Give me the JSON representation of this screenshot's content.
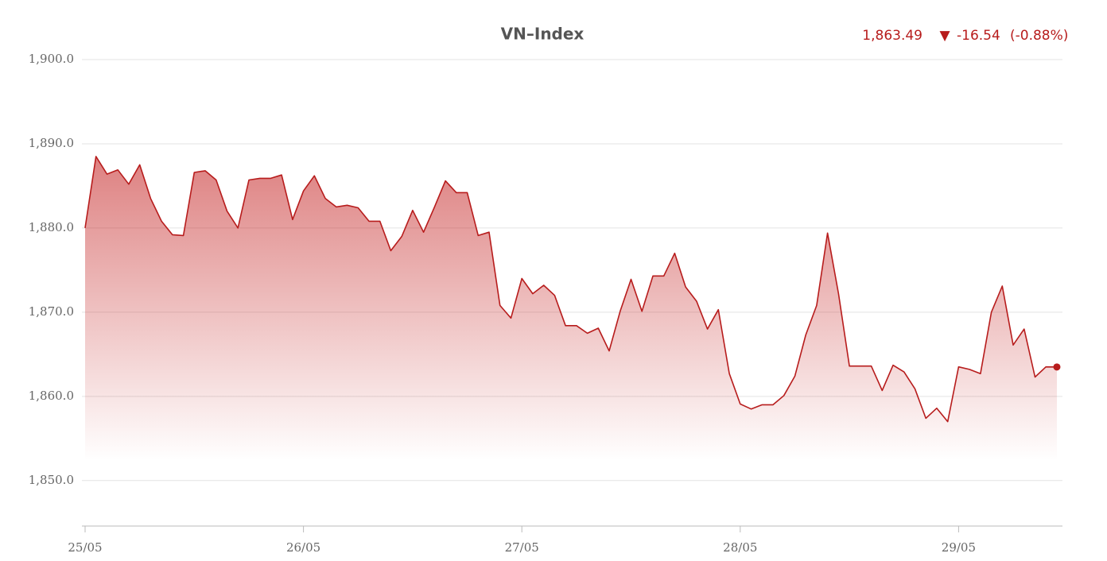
{
  "chart_data": {
    "type": "area",
    "title": "VN–Index",
    "summary": {
      "value": "1,863.49",
      "arrow": "▼",
      "change": "-16.54",
      "change_pct": "(-0.88%)"
    },
    "categories": [
      "25/05",
      null,
      null,
      null,
      null,
      null,
      null,
      null,
      null,
      null,
      null,
      null,
      null,
      null,
      null,
      null,
      null,
      null,
      null,
      null,
      "26/05",
      null,
      null,
      null,
      null,
      null,
      null,
      null,
      null,
      null,
      null,
      null,
      null,
      null,
      null,
      null,
      null,
      null,
      null,
      null,
      "27/05",
      null,
      null,
      null,
      null,
      null,
      null,
      null,
      null,
      null,
      null,
      null,
      null,
      null,
      null,
      null,
      null,
      null,
      null,
      null,
      "28/05",
      null,
      null,
      null,
      null,
      null,
      null,
      null,
      null,
      null,
      null,
      null,
      null,
      null,
      null,
      null,
      null,
      null,
      null,
      null,
      "29/05",
      null,
      null,
      null,
      null,
      null,
      null,
      null,
      null,
      null
    ],
    "series": [
      {
        "name": "VN-Index",
        "color": "#b71c1c",
        "values": [
          1880.0,
          1888.5,
          1886.4,
          1886.9,
          1885.2,
          1887.5,
          1883.5,
          1880.8,
          1879.2,
          1879.1,
          1886.6,
          1886.8,
          1885.7,
          1882.0,
          1880.0,
          1885.7,
          1885.9,
          1885.9,
          1886.3,
          1881.0,
          1884.4,
          1886.2,
          1883.5,
          1882.5,
          1882.7,
          1882.4,
          1880.8,
          1880.8,
          1877.3,
          1879.0,
          1882.1,
          1879.5,
          1882.5,
          1885.6,
          1884.2,
          1884.2,
          1879.1,
          1879.5,
          1870.8,
          1869.3,
          1874.0,
          1872.2,
          1873.2,
          1872.0,
          1868.4,
          1868.4,
          1867.5,
          1868.1,
          1865.4,
          1870.1,
          1873.9,
          1870.1,
          1874.3,
          1874.3,
          1877.0,
          1873.0,
          1871.3,
          1868.0,
          1870.3,
          1862.7,
          1859.1,
          1858.5,
          1859.0,
          1859.0,
          1860.1,
          1862.4,
          1867.3,
          1870.8,
          1879.4,
          1872.2,
          1863.6,
          1863.6,
          1863.6,
          1860.7,
          1863.7,
          1862.9,
          1860.9,
          1857.4,
          1858.6,
          1857.0,
          1863.5,
          1863.2,
          1862.7,
          1870.0,
          1873.1,
          1866.1,
          1868.0,
          1862.3,
          1863.5,
          1863.49
        ]
      }
    ],
    "ylim": [
      1844.6,
      1900
    ],
    "yticks": [
      {
        "value": 1850,
        "label": "1,850.0"
      },
      {
        "value": 1860,
        "label": "1,860.0"
      },
      {
        "value": 1870,
        "label": "1,870.0"
      },
      {
        "value": 1880,
        "label": "1,880.0"
      },
      {
        "value": 1890,
        "label": "1,890.0"
      },
      {
        "value": 1900,
        "label": "1,900.0"
      }
    ],
    "grid": true
  }
}
